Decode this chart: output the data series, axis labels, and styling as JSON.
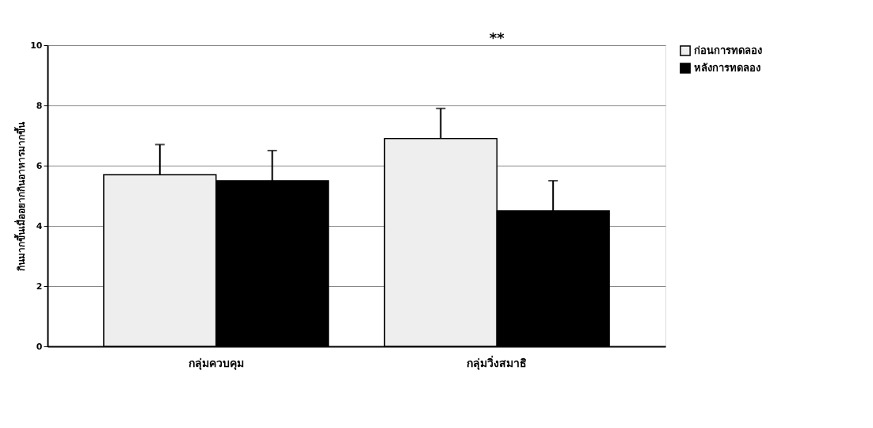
{
  "chart_data": {
    "type": "bar",
    "ylabel": "กินมากขึ้นเมื่ออยากกินอาหารมากขึ้น",
    "categories": [
      "กลุ่มควบคุม",
      "กลุ่มวิ่งสมาธิ"
    ],
    "series": [
      {
        "name": "ก่อนการทดลอง",
        "color": "#eeeeee",
        "values": [
          5.7,
          6.9
        ],
        "errors": [
          [
            5.7,
            6.7
          ],
          [
            6.9,
            7.9
          ]
        ]
      },
      {
        "name": "หลังการทดลอง",
        "color": "#000000",
        "values": [
          5.5,
          4.5
        ],
        "errors": [
          [
            5.5,
            6.5
          ],
          [
            4.5,
            5.5
          ]
        ]
      }
    ],
    "ylim": [
      0,
      10
    ],
    "yticks": [
      0,
      2,
      4,
      6,
      8,
      10
    ],
    "grid": "y",
    "legend": "right",
    "annotations": [
      "**"
    ]
  }
}
